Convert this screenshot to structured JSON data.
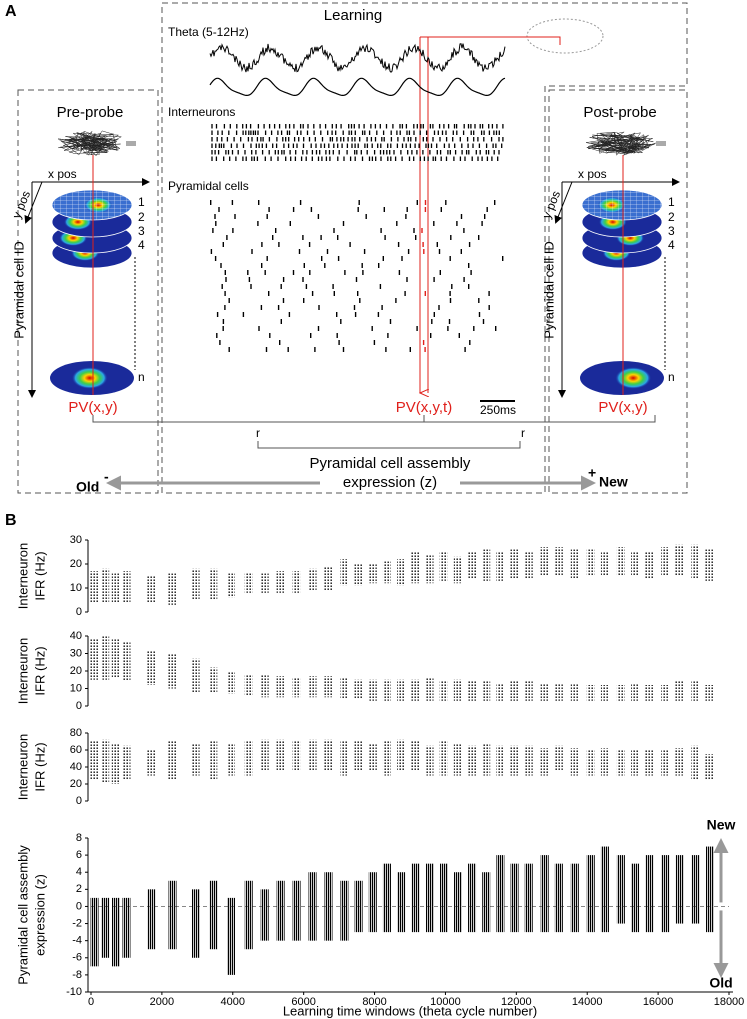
{
  "panel_a": {
    "label": "A",
    "learning": {
      "title": "Learning",
      "theta": "Theta (5-12Hz)",
      "interneurons": "Interneurons",
      "pyramidal_cells": "Pyramidal cells",
      "pv": "PV(x,y,t)",
      "scale_bar": "250ms"
    },
    "pre_probe": {
      "title": "Pre-probe",
      "x_axis": "x pos",
      "y_axis": "y pos",
      "cell_axis": "Pyramidal cell ID",
      "cells": [
        "1",
        "2",
        "3",
        "4",
        "n"
      ],
      "pv": "PV(x,y)"
    },
    "post_probe": {
      "title": "Post-probe",
      "x_axis": "x pos",
      "y_axis": "y pos",
      "cell_axis": "Pyramidal cell ID",
      "cells": [
        "1",
        "2",
        "3",
        "4",
        "n"
      ],
      "pv": "PV(x,y)"
    },
    "correlation": [
      "r",
      "r"
    ],
    "expression": [
      "Pyramidal cell assembly",
      "expression (z)"
    ],
    "old": "Old",
    "minus": "-",
    "new": "New",
    "plus": "+"
  },
  "panel_b_label": "B",
  "chart_data": [
    {
      "type": "scatter",
      "ylabel": [
        "Interneuron",
        "IFR (Hz)"
      ],
      "color": "#000000",
      "x": [
        100,
        400,
        700,
        1000,
        1700,
        2300,
        2950,
        3450,
        3950,
        4450,
        4900,
        5350,
        5800,
        6250,
        6700,
        7150,
        7550,
        7950,
        8350,
        8750,
        9150,
        9550,
        9950,
        10350,
        10750,
        11150,
        11550,
        11950,
        12350,
        12800,
        13200,
        13650,
        14100,
        14500,
        14950,
        15350,
        15750,
        16200,
        16600,
        17050,
        17450
      ],
      "low": [
        4,
        4,
        4,
        4,
        4,
        3,
        5,
        5,
        6,
        8,
        8,
        8,
        8,
        9,
        9,
        11,
        11,
        12,
        12,
        11,
        12,
        12,
        13,
        12,
        14,
        13,
        13,
        14,
        14,
        15,
        15,
        14,
        15,
        15,
        15,
        15,
        14,
        15,
        15,
        14,
        13
      ],
      "high": [
        17,
        18,
        16,
        17,
        15,
        16,
        18,
        18,
        16,
        16,
        16,
        17,
        17,
        18,
        19,
        22,
        20,
        20,
        21,
        22,
        25,
        24,
        25,
        23,
        25,
        26,
        25,
        26,
        25,
        27,
        27,
        26,
        26,
        25,
        27,
        25,
        25,
        27,
        28,
        28,
        26
      ],
      "xlim": [
        0,
        18000
      ],
      "ylim": [
        0,
        30
      ],
      "yticks": [
        0,
        10,
        20,
        30
      ]
    },
    {
      "type": "scatter",
      "ylabel": [
        "Interneuron",
        "IFR (Hz)"
      ],
      "color": "#000000",
      "x": [
        100,
        400,
        700,
        1000,
        1700,
        2300,
        2950,
        3450,
        3950,
        4450,
        4900,
        5350,
        5800,
        6250,
        6700,
        7150,
        7550,
        7950,
        8350,
        8750,
        9150,
        9550,
        9950,
        10350,
        10750,
        11150,
        11550,
        11950,
        12350,
        12800,
        13200,
        13650,
        14100,
        14500,
        14950,
        15350,
        15750,
        16200,
        16600,
        17050,
        17450
      ],
      "low": [
        15,
        15,
        16,
        14,
        12,
        10,
        8,
        8,
        7,
        6,
        5,
        5,
        5,
        5,
        5,
        4,
        4,
        3,
        3,
        3,
        3,
        3,
        3,
        3,
        3,
        3,
        3,
        3,
        3,
        3,
        3,
        3,
        3,
        3,
        3,
        3,
        3,
        3,
        3,
        3,
        3
      ],
      "high": [
        38,
        40,
        38,
        37,
        32,
        30,
        27,
        22,
        20,
        18,
        18,
        17,
        16,
        17,
        17,
        16,
        15,
        15,
        15,
        15,
        15,
        16,
        14,
        15,
        14,
        14,
        13,
        14,
        14,
        13,
        13,
        13,
        12,
        12,
        12,
        13,
        12,
        12,
        14,
        14,
        12
      ],
      "xlim": [
        0,
        18000
      ],
      "ylim": [
        0,
        40
      ],
      "yticks": [
        0,
        10,
        20,
        30,
        40
      ]
    },
    {
      "type": "scatter",
      "ylabel": [
        "Interneuron",
        "IFR (Hz)"
      ],
      "color": "#000000",
      "x": [
        100,
        400,
        700,
        1000,
        1700,
        2300,
        2950,
        3450,
        3950,
        4450,
        4900,
        5350,
        5800,
        6250,
        6700,
        7150,
        7550,
        7950,
        8350,
        8750,
        9150,
        9550,
        9950,
        10350,
        10750,
        11150,
        11550,
        11950,
        12350,
        12800,
        13200,
        13650,
        14100,
        14500,
        14950,
        15350,
        15750,
        16200,
        16600,
        17050,
        17450
      ],
      "low": [
        25,
        22,
        20,
        25,
        30,
        25,
        30,
        25,
        30,
        30,
        35,
        35,
        35,
        35,
        35,
        30,
        35,
        35,
        30,
        35,
        35,
        30,
        30,
        30,
        30,
        30,
        30,
        30,
        30,
        30,
        35,
        30,
        30,
        30,
        30,
        30,
        30,
        30,
        30,
        25,
        25
      ],
      "high": [
        70,
        72,
        68,
        65,
        60,
        70,
        68,
        70,
        68,
        70,
        72,
        72,
        70,
        72,
        72,
        70,
        70,
        68,
        70,
        72,
        70,
        65,
        70,
        68,
        65,
        68,
        65,
        65,
        65,
        62,
        65,
        62,
        60,
        62,
        60,
        60,
        60,
        60,
        62,
        65,
        55
      ],
      "xlim": [
        0,
        18000
      ],
      "ylim": [
        0,
        80
      ],
      "yticks": [
        0,
        20,
        40,
        60,
        80
      ]
    },
    {
      "type": "bar",
      "ylabel": [
        "Pyramidal cell assembly",
        "expression (z)"
      ],
      "xlabel": "Learning time windows (theta cycle number)",
      "color": "#000000",
      "zero_line": true,
      "x": [
        100,
        400,
        700,
        1000,
        1700,
        2300,
        2950,
        3450,
        3950,
        4450,
        4900,
        5350,
        5800,
        6250,
        6700,
        7150,
        7550,
        7950,
        8350,
        8750,
        9150,
        9550,
        9950,
        10350,
        10750,
        11150,
        11550,
        11950,
        12350,
        12800,
        13200,
        13650,
        14100,
        14500,
        14950,
        15350,
        15750,
        16200,
        16600,
        17050,
        17450
      ],
      "low": [
        -7,
        -6,
        -7,
        -6,
        -5,
        -5,
        -6,
        -5,
        -8,
        -5,
        -4,
        -4,
        -4,
        -4,
        -4,
        -4,
        -3,
        -3,
        -3,
        -3,
        -3,
        -3,
        -3,
        -3,
        -3,
        -3,
        -3,
        -3,
        -3,
        -3,
        -3,
        -3,
        -3,
        -3,
        -2,
        -3,
        -3,
        -3,
        -2,
        -2,
        -3
      ],
      "high": [
        1,
        1,
        1,
        1,
        2,
        3,
        2,
        3,
        1,
        3,
        2,
        3,
        3,
        4,
        4,
        3,
        3,
        4,
        5,
        4,
        5,
        5,
        5,
        4,
        5,
        4,
        6,
        5,
        5,
        6,
        5,
        5,
        6,
        7,
        6,
        5,
        6,
        6,
        6,
        6,
        7
      ],
      "xlim": [
        0,
        18000
      ],
      "xticks": [
        0,
        2000,
        4000,
        6000,
        8000,
        10000,
        12000,
        14000,
        16000,
        18000
      ],
      "ylim": [
        -10,
        8
      ],
      "yticks": [
        -10,
        -8,
        -6,
        -4,
        -2,
        0,
        2,
        4,
        6,
        8
      ],
      "annotations": [
        "New",
        "Old"
      ]
    }
  ]
}
